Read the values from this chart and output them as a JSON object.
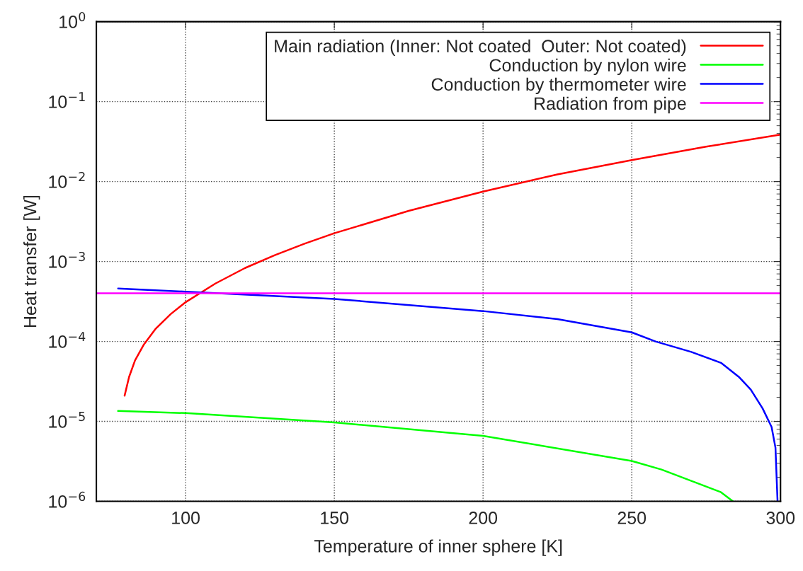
{
  "chart_data": {
    "type": "line",
    "xlabel": "Temperature of inner sphere [K]",
    "ylabel": "Heat transfer [W]",
    "xlim": [
      70,
      300
    ],
    "xticks": [
      100,
      150,
      200,
      250,
      300
    ],
    "ylim": [
      1e-06,
      1
    ],
    "log": "y",
    "yticks": [
      {
        "value": 1e-06,
        "label": "10$^{−6}$"
      },
      {
        "value": 1e-05,
        "label": "10$^{−5}$"
      },
      {
        "value": 0.0001,
        "label": "10$^{−4}$"
      },
      {
        "value": 0.001,
        "label": "10$^{−3}$"
      },
      {
        "value": 0.01,
        "label": "10$^{−2}$"
      },
      {
        "value": 0.1,
        "label": "10$^{−1}$"
      },
      {
        "value": 1,
        "label": "10$^{0}$"
      }
    ],
    "grid": true,
    "legend": "top right",
    "line_style": "solid",
    "marker": "none",
    "series": [
      {
        "name": "Main radiation (Inner: Not coated  Outer: Not coated)",
        "color": "#ff0000",
        "x": [
          79.5,
          81,
          83,
          86,
          90,
          95,
          100,
          110,
          120,
          130,
          140,
          150,
          175,
          200,
          225,
          250,
          275,
          300
        ],
        "values": [
          2.1e-05,
          3.6e-05,
          5.8e-05,
          9.2e-05,
          0.000145,
          0.00022,
          0.00031,
          0.00053,
          0.00083,
          0.0012,
          0.00167,
          0.00226,
          0.0043,
          0.0075,
          0.0123,
          0.0186,
          0.0273,
          0.0387
        ]
      },
      {
        "name": "Conduction by nylon wire",
        "color": "#00ff00",
        "x": [
          77.3,
          100,
          150,
          200,
          250,
          260,
          270,
          280,
          284
        ],
        "values": [
          1.35e-05,
          1.27e-05,
          9.7e-06,
          6.6e-06,
          3.2e-06,
          2.5e-06,
          1.8e-06,
          1.3e-06,
          1e-06
        ]
      },
      {
        "name": "Conduction by thermometer wire",
        "color": "#0000ff",
        "x": [
          77.3,
          100,
          150,
          200,
          225,
          250,
          258,
          270,
          280,
          286,
          290,
          294,
          297,
          298.3,
          299
        ],
        "values": [
          0.00046,
          0.00042,
          0.00034,
          0.00024,
          0.00019,
          0.00013,
          0.0001,
          7.4e-05,
          5.4e-05,
          3.6e-05,
          2.5e-05,
          1.45e-05,
          8.5e-06,
          4.7e-06,
          1e-06
        ]
      },
      {
        "name": "Radiation from pipe",
        "color": "#ff00ff",
        "x": [
          70,
          300
        ],
        "values": [
          0.0004,
          0.0004
        ]
      }
    ]
  }
}
